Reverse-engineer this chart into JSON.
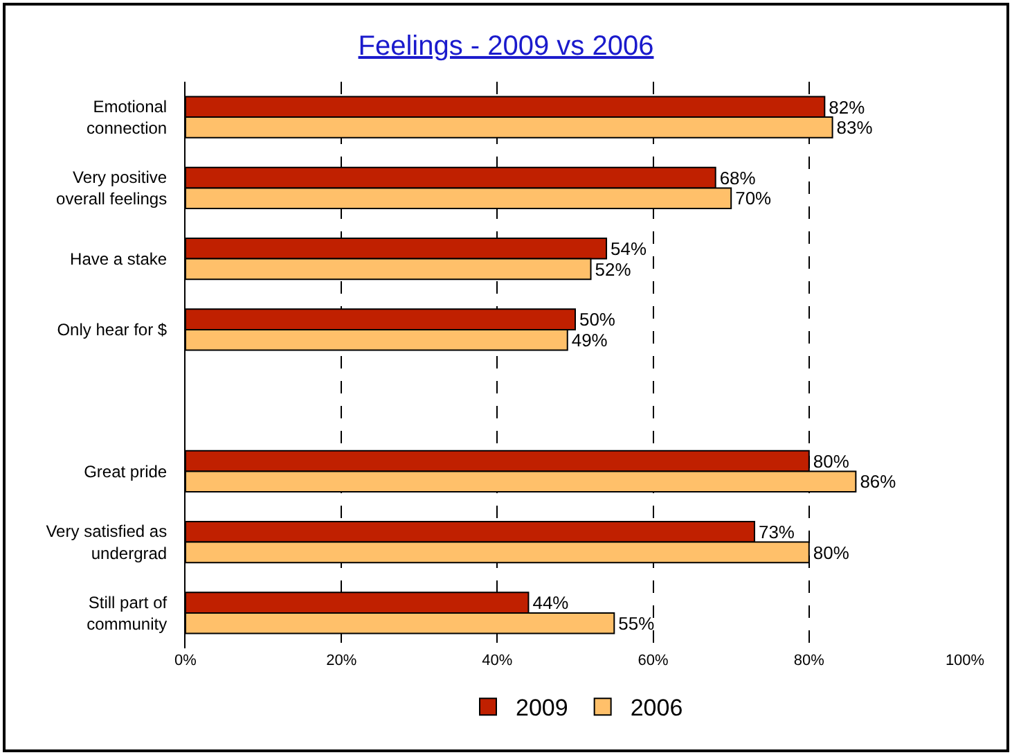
{
  "chart_data": {
    "type": "bar",
    "orientation": "horizontal",
    "title": "Feelings - 2009 vs 2006",
    "categories": [
      "Emotional connection",
      "Very positive overall feelings",
      "Have a stake",
      "Only hear for $",
      null,
      "Great pride",
      "Very satisfied as undergrad",
      "Still part of community"
    ],
    "series": [
      {
        "name": "2009",
        "color": "#c02000",
        "values": [
          82,
          68,
          54,
          50,
          null,
          80,
          73,
          44
        ],
        "value_labels": [
          "82%",
          "68%",
          "54%",
          "50%",
          null,
          "80%",
          "73%",
          "44%"
        ]
      },
      {
        "name": "2006",
        "color": "#ffc06a",
        "values": [
          83,
          70,
          52,
          49,
          null,
          86,
          80,
          55
        ],
        "value_labels": [
          "83%",
          "70%",
          "52%",
          "49%",
          null,
          "86%",
          "80%",
          "55%"
        ]
      }
    ],
    "xlim": [
      0,
      100
    ],
    "xticks": [
      {
        "value": 0,
        "label": "0%"
      },
      {
        "value": 20,
        "label": "20%"
      },
      {
        "value": 40,
        "label": "40%"
      },
      {
        "value": 60,
        "label": "60%"
      },
      {
        "value": 80,
        "label": "80%"
      },
      {
        "value": 100,
        "label": "100%"
      }
    ],
    "grid": "x",
    "legend": "bottom"
  }
}
